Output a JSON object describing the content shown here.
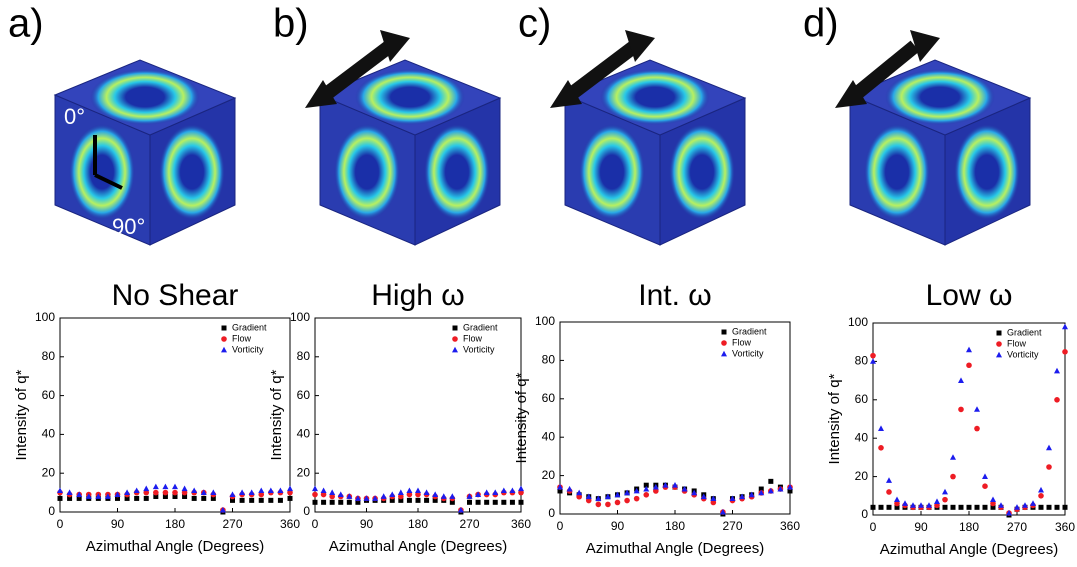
{
  "chart_data": [
    {
      "type": "scatter",
      "label": "a)",
      "title": "No Shear",
      "xlabel": "Azimuthal Angle (Degrees)",
      "ylabel": "Intensity of q*",
      "annotations": [
        "0°",
        "90°"
      ],
      "x": [
        0,
        15,
        30,
        45,
        60,
        75,
        90,
        105,
        120,
        135,
        150,
        165,
        180,
        195,
        210,
        225,
        240,
        255,
        270,
        285,
        300,
        315,
        330,
        345,
        360
      ],
      "xlim": [
        0,
        360
      ],
      "xticks": [
        0,
        90,
        180,
        270,
        360
      ],
      "ylim": [
        0,
        100
      ],
      "yticks": [
        0,
        20,
        40,
        60,
        80,
        100
      ],
      "legend": "upper right",
      "series": [
        {
          "name": "Gradient",
          "color": "#000000",
          "marker": "square",
          "values": [
            7,
            7,
            7,
            7,
            7,
            7,
            7,
            7,
            7,
            7,
            8,
            8,
            8,
            8,
            7,
            7,
            7,
            0,
            6,
            6,
            6,
            6,
            6,
            6,
            7
          ]
        },
        {
          "name": "Flow",
          "color": "#ee1c24",
          "marker": "circle",
          "values": [
            10,
            9,
            9,
            9,
            9,
            9,
            9,
            9,
            10,
            10,
            10,
            10,
            10,
            10,
            10,
            10,
            9,
            1,
            8,
            9,
            9,
            9,
            10,
            10,
            10
          ]
        },
        {
          "name": "Vorticity",
          "color": "#1c1cee",
          "marker": "triangle",
          "values": [
            11,
            10,
            9,
            8,
            8,
            8,
            9,
            10,
            11,
            12,
            13,
            13,
            13,
            12,
            11,
            10,
            10,
            1,
            9,
            10,
            10,
            11,
            11,
            11,
            12
          ]
        }
      ]
    },
    {
      "type": "scatter",
      "label": "b)",
      "title": "High ω",
      "xlabel": "Azimuthal Angle (Degrees)",
      "ylabel": "Intensity of q*",
      "x": [
        0,
        15,
        30,
        45,
        60,
        75,
        90,
        105,
        120,
        135,
        150,
        165,
        180,
        195,
        210,
        225,
        240,
        255,
        270,
        285,
        300,
        315,
        330,
        345,
        360
      ],
      "xlim": [
        0,
        360
      ],
      "xticks": [
        0,
        90,
        180,
        270,
        360
      ],
      "ylim": [
        0,
        100
      ],
      "yticks": [
        0,
        20,
        40,
        60,
        80,
        100
      ],
      "legend": "upper right",
      "series": [
        {
          "name": "Gradient",
          "color": "#000000",
          "marker": "square",
          "values": [
            5,
            5,
            5,
            5,
            5,
            5,
            6,
            6,
            6,
            6,
            6,
            6,
            6,
            6,
            6,
            6,
            5,
            0,
            5,
            5,
            5,
            5,
            5,
            5,
            5
          ]
        },
        {
          "name": "Flow",
          "color": "#ee1c24",
          "marker": "circle",
          "values": [
            9,
            9,
            8,
            8,
            8,
            7,
            7,
            7,
            7,
            8,
            8,
            9,
            9,
            9,
            8,
            7,
            7,
            1,
            8,
            9,
            9,
            9,
            10,
            10,
            10
          ]
        },
        {
          "name": "Vorticity",
          "color": "#1c1cee",
          "marker": "triangle",
          "values": [
            12,
            11,
            10,
            9,
            8,
            7,
            7,
            7,
            8,
            9,
            10,
            11,
            11,
            10,
            9,
            8,
            8,
            1,
            8,
            9,
            10,
            10,
            11,
            11,
            12
          ]
        }
      ]
    },
    {
      "type": "scatter",
      "label": "c)",
      "title": "Int. ω",
      "xlabel": "Azimuthal Angle (Degrees)",
      "ylabel": "Intensity of q*",
      "x": [
        0,
        15,
        30,
        45,
        60,
        75,
        90,
        105,
        120,
        135,
        150,
        165,
        180,
        195,
        210,
        225,
        240,
        255,
        270,
        285,
        300,
        315,
        330,
        345,
        360
      ],
      "xlim": [
        0,
        360
      ],
      "xticks": [
        0,
        90,
        180,
        270,
        360
      ],
      "ylim": [
        0,
        100
      ],
      "yticks": [
        0,
        20,
        40,
        60,
        80,
        100
      ],
      "legend": "upper right",
      "series": [
        {
          "name": "Gradient",
          "color": "#000000",
          "marker": "square",
          "values": [
            12,
            11,
            10,
            9,
            8,
            9,
            10,
            11,
            13,
            15,
            15,
            15,
            14,
            13,
            12,
            10,
            8,
            0,
            8,
            9,
            10,
            13,
            17,
            14,
            12
          ]
        },
        {
          "name": "Flow",
          "color": "#ee1c24",
          "marker": "circle",
          "values": [
            14,
            12,
            9,
            7,
            5,
            5,
            6,
            7,
            8,
            10,
            12,
            14,
            14,
            12,
            10,
            8,
            6,
            1,
            7,
            8,
            9,
            11,
            12,
            13,
            14
          ]
        },
        {
          "name": "Vorticity",
          "color": "#1c1cee",
          "marker": "triangle",
          "values": [
            14,
            13,
            11,
            9,
            8,
            9,
            10,
            11,
            12,
            13,
            14,
            15,
            15,
            13,
            11,
            9,
            8,
            1,
            8,
            9,
            10,
            11,
            12,
            13,
            14
          ]
        }
      ]
    },
    {
      "type": "scatter",
      "label": "d)",
      "title": "Low ω",
      "xlabel": "Azimuthal Angle (Degrees)",
      "ylabel": "Intensity of q*",
      "x": [
        0,
        15,
        30,
        45,
        60,
        75,
        90,
        105,
        120,
        135,
        150,
        165,
        180,
        195,
        210,
        225,
        240,
        255,
        270,
        285,
        300,
        315,
        330,
        345,
        360
      ],
      "xlim": [
        0,
        360
      ],
      "xticks": [
        0,
        90,
        180,
        270,
        360
      ],
      "ylim": [
        0,
        100
      ],
      "yticks": [
        0,
        20,
        40,
        60,
        80,
        100
      ],
      "legend": "upper right",
      "series": [
        {
          "name": "Gradient",
          "color": "#000000",
          "marker": "square",
          "values": [
            4,
            4,
            4,
            4,
            4,
            4,
            4,
            4,
            4,
            4,
            4,
            4,
            4,
            4,
            4,
            4,
            4,
            0,
            3,
            4,
            4,
            4,
            4,
            4,
            4
          ]
        },
        {
          "name": "Flow",
          "color": "#ee1c24",
          "marker": "circle",
          "values": [
            83,
            35,
            12,
            6,
            5,
            4,
            4,
            4,
            5,
            8,
            20,
            55,
            78,
            45,
            15,
            6,
            4,
            1,
            3,
            4,
            5,
            10,
            25,
            60,
            85
          ]
        },
        {
          "name": "Vorticity",
          "color": "#1c1cee",
          "marker": "triangle",
          "values": [
            80,
            45,
            18,
            8,
            6,
            5,
            5,
            5,
            7,
            12,
            30,
            70,
            86,
            55,
            20,
            8,
            5,
            1,
            4,
            5,
            6,
            13,
            35,
            75,
            98
          ]
        }
      ]
    }
  ]
}
